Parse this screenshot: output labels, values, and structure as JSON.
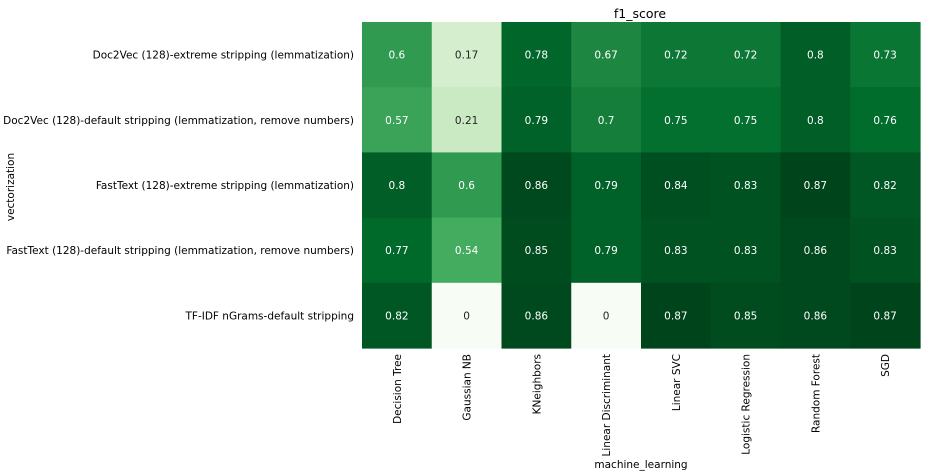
{
  "chart_data": {
    "type": "heatmap",
    "title": "f1_score",
    "xlabel": "machine_learning",
    "ylabel": "vectorization",
    "x_categories": [
      "Decision Tree",
      "Gaussian NB",
      "KNeighbors",
      "Linear Discriminant",
      "Linear SVC",
      "Logistic Regression",
      "Random Forest",
      "SGD"
    ],
    "y_categories": [
      "Doc2Vec (128)-extreme stripping (lemmatization)",
      "Doc2Vec (128)-default stripping (lemmatization, remove numbers)",
      "FastText (128)-extreme stripping (lemmatization)",
      "FastText (128)-default stripping (lemmatization, remove numbers)",
      "TF-IDF nGrams-default stripping"
    ],
    "values": [
      [
        0.6,
        0.17,
        0.78,
        0.67,
        0.72,
        0.72,
        0.8,
        0.73
      ],
      [
        0.57,
        0.21,
        0.79,
        0.7,
        0.75,
        0.75,
        0.8,
        0.76
      ],
      [
        0.8,
        0.6,
        0.86,
        0.79,
        0.84,
        0.83,
        0.87,
        0.82
      ],
      [
        0.77,
        0.54,
        0.85,
        0.79,
        0.83,
        0.83,
        0.86,
        0.83
      ],
      [
        0.82,
        0,
        0.86,
        0,
        0.87,
        0.85,
        0.86,
        0.87
      ]
    ],
    "colormap": "Greens",
    "value_range": [
      0,
      0.87
    ],
    "colorbar": false
  }
}
